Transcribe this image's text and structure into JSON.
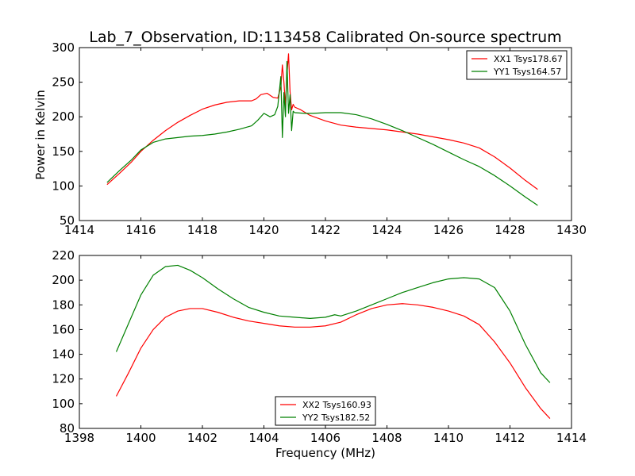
{
  "chart_data": [
    {
      "type": "line",
      "title": "Lab_7_Observation, ID:113458 Calibrated On-source spectrum",
      "xlabel": "",
      "ylabel": "Power in Kelvin",
      "xlim": [
        1414,
        1430
      ],
      "ylim": [
        50,
        300
      ],
      "xticks": [
        1414,
        1416,
        1418,
        1420,
        1422,
        1424,
        1426,
        1428,
        1430
      ],
      "yticks": [
        50,
        100,
        150,
        200,
        250,
        300
      ],
      "legend": "top-right",
      "series": [
        {
          "name": "XX1 Tsys178.67",
          "color": "#ff0000",
          "x": [
            1414.9,
            1415.3,
            1415.7,
            1416.0,
            1416.4,
            1416.8,
            1417.2,
            1417.6,
            1418.0,
            1418.4,
            1418.8,
            1419.2,
            1419.6,
            1419.75,
            1419.9,
            1420.1,
            1420.3,
            1420.45,
            1420.55,
            1420.6,
            1420.65,
            1420.7,
            1420.75,
            1420.8,
            1420.85,
            1420.9,
            1420.95,
            1421.0,
            1421.2,
            1421.5,
            1422.0,
            1422.5,
            1423.0,
            1423.5,
            1424.0,
            1424.5,
            1425.0,
            1425.5,
            1426.0,
            1426.5,
            1427.0,
            1427.5,
            1428.0,
            1428.5,
            1428.9
          ],
          "y": [
            102,
            118,
            135,
            150,
            166,
            180,
            192,
            202,
            211,
            217,
            221,
            223,
            223,
            226,
            232,
            234,
            228,
            227,
            243,
            275,
            250,
            215,
            262,
            291,
            236,
            210,
            218,
            214,
            210,
            202,
            194,
            188,
            185,
            183,
            181,
            178,
            175,
            171,
            167,
            162,
            155,
            142,
            126,
            108,
            95
          ]
        },
        {
          "name": "YY1 Tsys164.57",
          "color": "#008000",
          "x": [
            1414.9,
            1415.3,
            1415.7,
            1416.0,
            1416.4,
            1416.8,
            1417.2,
            1417.6,
            1418.0,
            1418.4,
            1418.8,
            1419.2,
            1419.6,
            1419.8,
            1420.0,
            1420.2,
            1420.35,
            1420.45,
            1420.55,
            1420.6,
            1420.65,
            1420.7,
            1420.75,
            1420.8,
            1420.85,
            1420.9,
            1420.95,
            1421.0,
            1421.3,
            1421.6,
            1422.0,
            1422.5,
            1423.0,
            1423.5,
            1424.0,
            1424.5,
            1425.0,
            1425.5,
            1426.0,
            1426.5,
            1427.0,
            1427.5,
            1428.0,
            1428.5,
            1428.9
          ],
          "y": [
            105,
            122,
            138,
            152,
            163,
            168,
            170,
            172,
            173,
            175,
            178,
            182,
            187,
            195,
            205,
            200,
            203,
            215,
            258,
            170,
            235,
            200,
            280,
            205,
            232,
            180,
            208,
            206,
            205,
            205,
            206,
            206,
            203,
            197,
            189,
            180,
            170,
            160,
            149,
            138,
            128,
            115,
            100,
            84,
            72
          ]
        }
      ]
    },
    {
      "type": "line",
      "title": "",
      "xlabel": "Frequency (MHz)",
      "ylabel": "",
      "xlim": [
        1398,
        1414
      ],
      "ylim": [
        80,
        220
      ],
      "xticks": [
        1398,
        1400,
        1402,
        1404,
        1406,
        1408,
        1410,
        1412,
        1414
      ],
      "yticks": [
        80,
        100,
        120,
        140,
        160,
        180,
        200,
        220
      ],
      "legend": "bottom-center",
      "series": [
        {
          "name": "XX2 Tsys160.93",
          "color": "#ff0000",
          "x": [
            1399.2,
            1399.6,
            1400.0,
            1400.4,
            1400.8,
            1401.2,
            1401.6,
            1402.0,
            1402.5,
            1403.0,
            1403.5,
            1404.0,
            1404.5,
            1405.0,
            1405.5,
            1406.0,
            1406.5,
            1407.0,
            1407.5,
            1408.0,
            1408.5,
            1409.0,
            1409.5,
            1410.0,
            1410.5,
            1411.0,
            1411.5,
            1412.0,
            1412.5,
            1413.0,
            1413.3
          ],
          "y": [
            106,
            125,
            145,
            160,
            170,
            175,
            177,
            177,
            174,
            170,
            167,
            165,
            163,
            162,
            162,
            163,
            166,
            172,
            177,
            180,
            181,
            180,
            178,
            175,
            171,
            164,
            150,
            133,
            113,
            96,
            88
          ]
        },
        {
          "name": "YY2 Tsys182.52",
          "color": "#008000",
          "x": [
            1399.2,
            1399.6,
            1400.0,
            1400.4,
            1400.8,
            1401.2,
            1401.6,
            1402.0,
            1402.5,
            1403.0,
            1403.5,
            1404.0,
            1404.5,
            1405.0,
            1405.5,
            1406.0,
            1406.3,
            1406.5,
            1407.0,
            1407.5,
            1408.0,
            1408.5,
            1409.0,
            1409.5,
            1410.0,
            1410.5,
            1411.0,
            1411.5,
            1412.0,
            1412.5,
            1413.0,
            1413.3
          ],
          "y": [
            142,
            165,
            188,
            204,
            211,
            212,
            208,
            202,
            193,
            185,
            178,
            174,
            171,
            170,
            169,
            170,
            172,
            171,
            175,
            180,
            185,
            190,
            194,
            198,
            201,
            202,
            201,
            194,
            175,
            148,
            125,
            117
          ]
        }
      ]
    }
  ]
}
